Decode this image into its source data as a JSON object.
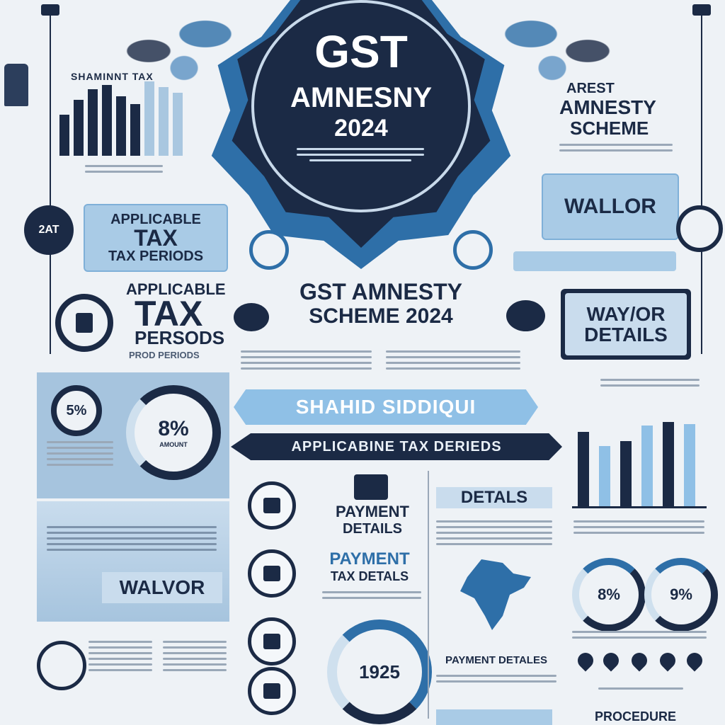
{
  "badge": {
    "title": "GST",
    "subtitle": "AMNESNY",
    "year": "2024"
  },
  "left_top": {
    "label": "SHAMINNT TAX"
  },
  "right_top": {
    "line1": "AREST",
    "line2": "AMNESTY",
    "line3": "SCHEME",
    "button": "WALLOR"
  },
  "left_mid": {
    "circle_label": "2AT",
    "pill_line1": "APPLICABLE",
    "pill_line2": "TAX",
    "pill_line3": "TAX PERIODS",
    "heading_line1": "APPLICABLE",
    "heading_line2": "TAX",
    "heading_line3": "PERSODS",
    "sub": "PROD PERIODS"
  },
  "center": {
    "title_line1": "GST AMNESTY",
    "title_line2": "SCHEME 2024",
    "name_banner": "SHAHID SIDDIQUI",
    "periods_banner": "APPLICABINE TAX DERIEDS",
    "payment_line1": "PAYMENT",
    "payment_line2": "DETAILS",
    "payment2_line1": "PAYMENT",
    "payment2_line2": "TAX DETALS",
    "ring_value": "1925",
    "payment_detales": "PAYMENT DETALES",
    "details_head": "DETALS"
  },
  "right_mid": {
    "box_line1": "WAY/OR",
    "box_line2": "DETAILS"
  },
  "left_panel": {
    "pct1": "5%",
    "pct2": "8%",
    "pct2_sub": "AMOUNT",
    "waiver": "WALVOR"
  },
  "right_bottom": {
    "pct1": "8%",
    "pct2": "9%",
    "footer": "PROCEDURE"
  },
  "right_chart": {
    "values": [
      0.62,
      0.5,
      0.54,
      0.67,
      0.7,
      0.68
    ]
  },
  "colors": {
    "navy": "#1b2a45",
    "accent": "#8fc0e6",
    "panel": "#a6c4de"
  }
}
